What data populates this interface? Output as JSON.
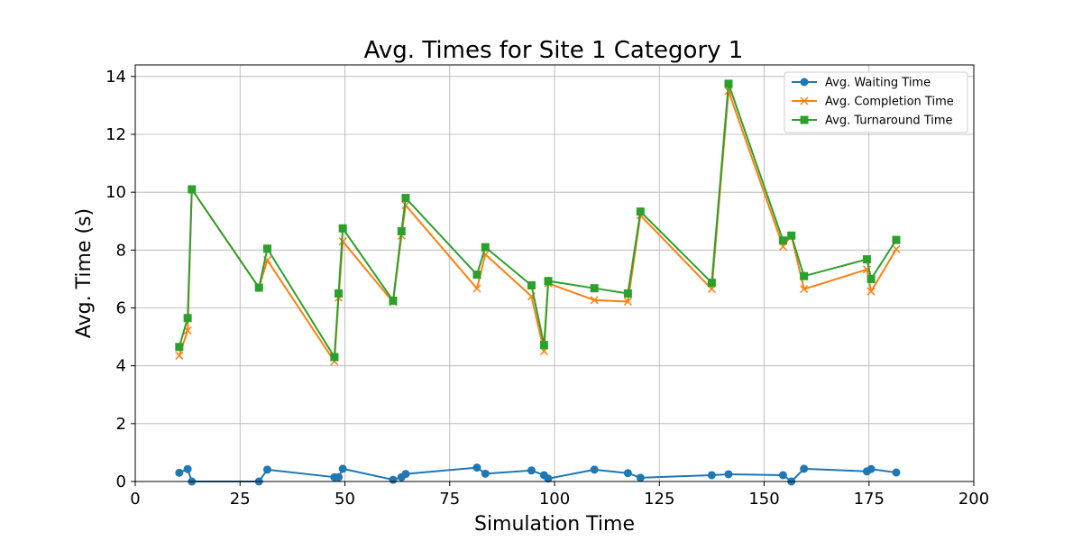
{
  "chart_data": {
    "type": "line",
    "title": "Avg. Times for Site 1 Category 1",
    "xlabel": "Simulation Time",
    "ylabel": "Avg. Time (s)",
    "xlim": [
      0,
      200
    ],
    "ylim": [
      0,
      14.4
    ],
    "xticks": [
      0,
      25,
      50,
      75,
      100,
      125,
      150,
      175,
      200
    ],
    "yticks": [
      0,
      2,
      4,
      6,
      8,
      10,
      12,
      14
    ],
    "grid": true,
    "legend_position": "top-right",
    "x": [
      10.5,
      12.5,
      13.5,
      29.5,
      31.5,
      47.5,
      48.5,
      49.5,
      61.5,
      63.5,
      64.5,
      81.5,
      83.5,
      94.5,
      97.5,
      98.5,
      109.5,
      117.5,
      120.5,
      137.5,
      141.5,
      154.5,
      156.5,
      159.5,
      174.5,
      175.5,
      181.5
    ],
    "series": [
      {
        "name": "Avg. Waiting Time",
        "color": "#1f77b4",
        "marker": "circle",
        "values": [
          0.3,
          0.43,
          0.0,
          0.0,
          0.41,
          0.15,
          0.15,
          0.44,
          0.06,
          0.15,
          0.26,
          0.48,
          0.27,
          0.38,
          0.22,
          0.1,
          0.41,
          0.29,
          0.13,
          0.22,
          0.25,
          0.22,
          0.0,
          0.44,
          0.35,
          0.43,
          0.31
        ]
      },
      {
        "name": "Avg. Completion Time",
        "color": "#ff7f0e",
        "marker": "x",
        "values": [
          4.35,
          5.22,
          10.1,
          6.7,
          7.65,
          4.15,
          6.35,
          8.3,
          6.2,
          8.5,
          9.55,
          6.67,
          7.85,
          6.4,
          4.5,
          6.85,
          6.27,
          6.22,
          9.2,
          6.65,
          13.5,
          8.12,
          8.5,
          6.65,
          7.33,
          6.57,
          8.03
        ]
      },
      {
        "name": "Avg. Turnaround Time",
        "color": "#2ca02c",
        "marker": "square",
        "values": [
          4.65,
          5.65,
          10.1,
          6.7,
          8.05,
          4.3,
          6.5,
          8.75,
          6.25,
          8.65,
          9.8,
          7.15,
          8.1,
          6.78,
          4.72,
          6.93,
          6.68,
          6.5,
          9.33,
          6.87,
          13.75,
          8.33,
          8.5,
          7.1,
          7.68,
          7.0,
          8.35
        ]
      }
    ]
  }
}
